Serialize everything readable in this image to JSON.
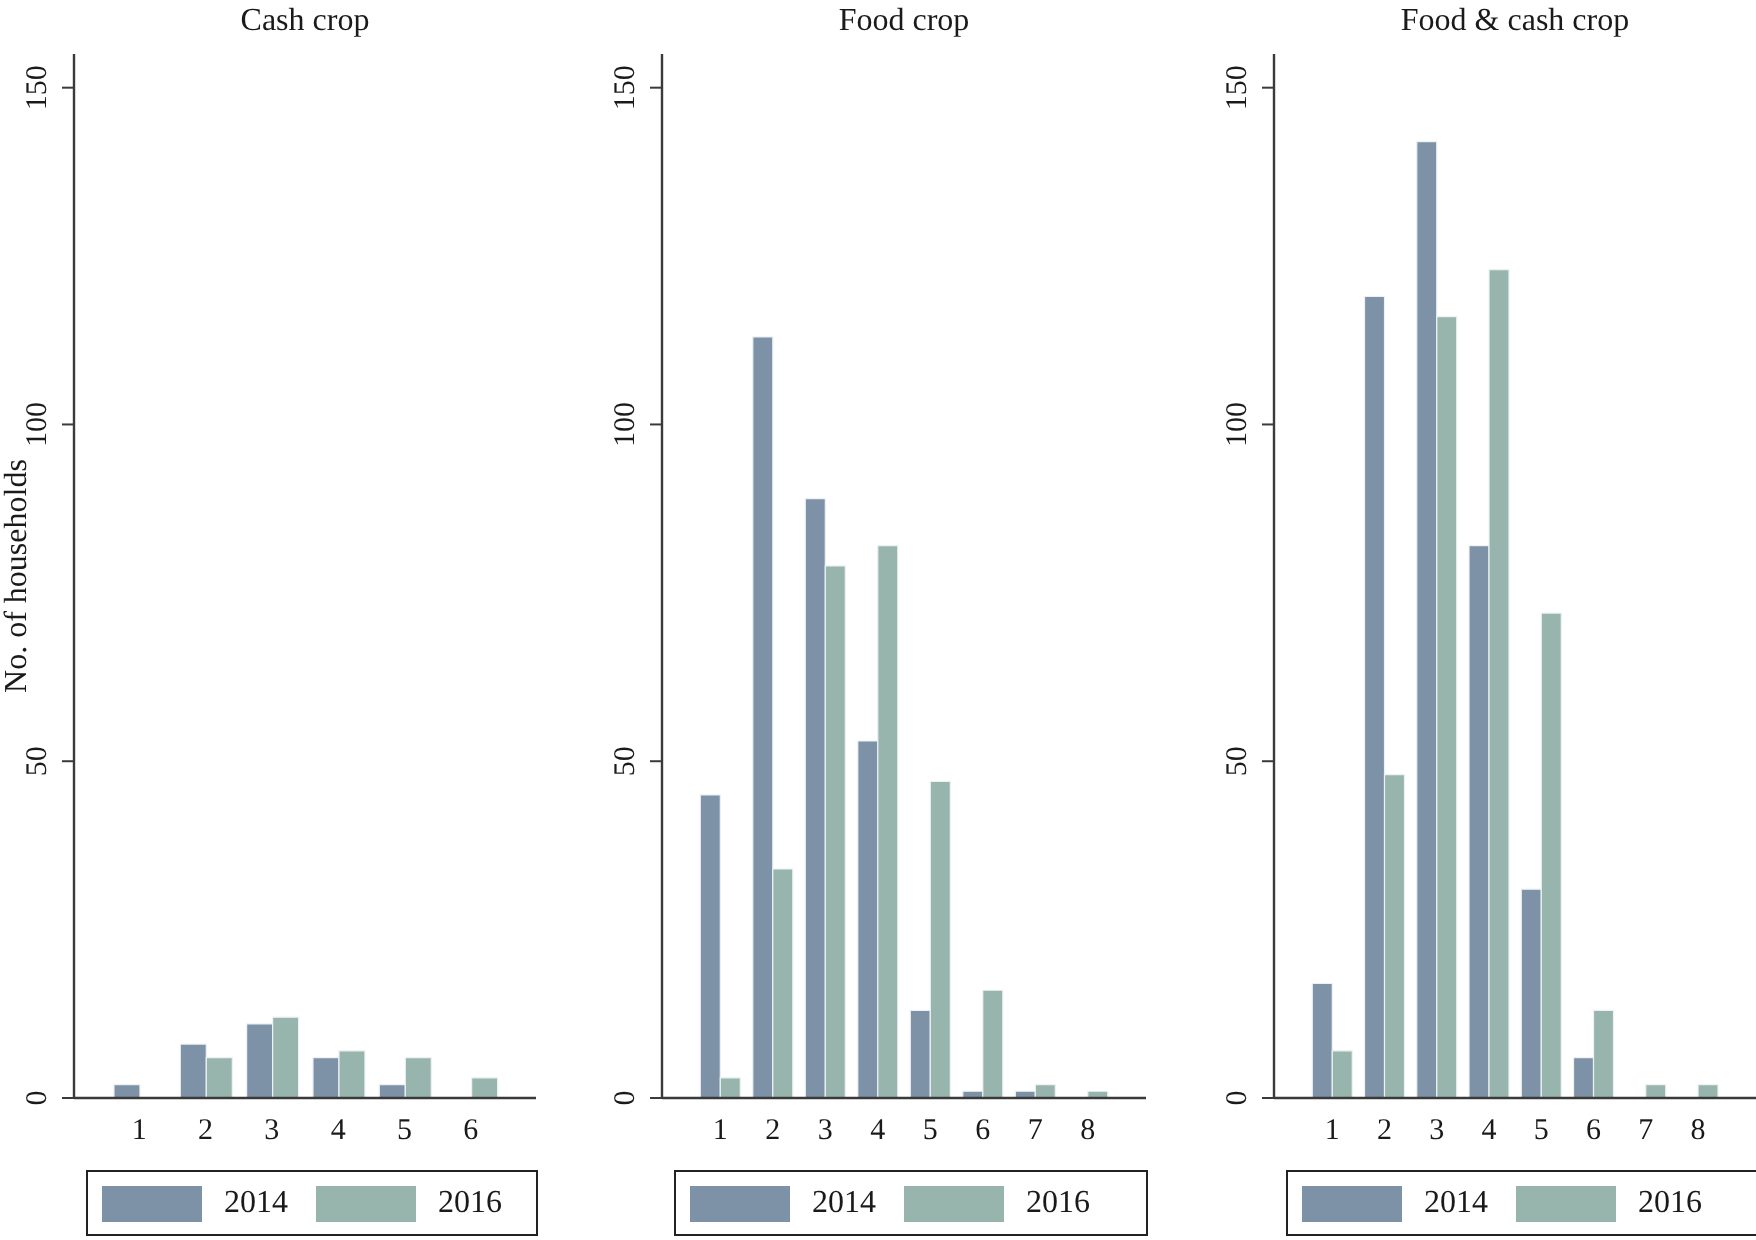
{
  "chart_data": [
    {
      "type": "bar",
      "title": "Cash crop",
      "ylabel": "No. of households",
      "categories": [
        "1",
        "2",
        "3",
        "4",
        "5",
        "6"
      ],
      "series": [
        {
          "name": "2014",
          "color": "#7d91a7",
          "values": [
            2,
            8,
            11,
            6,
            2,
            0
          ]
        },
        {
          "name": "2016",
          "color": "#98b5ad",
          "values": [
            0,
            6,
            12,
            7,
            6,
            3
          ]
        }
      ],
      "ylim": [
        0,
        155
      ],
      "yticks": [
        0,
        50,
        100,
        150
      ],
      "legend": "bottom",
      "grid": false
    },
    {
      "type": "bar",
      "title": "Food crop",
      "categories": [
        "1",
        "2",
        "3",
        "4",
        "5",
        "6",
        "7",
        "8"
      ],
      "series": [
        {
          "name": "2014",
          "color": "#7d91a7",
          "values": [
            45,
            113,
            89,
            53,
            13,
            1,
            1,
            0
          ]
        },
        {
          "name": "2016",
          "color": "#98b5ad",
          "values": [
            3,
            34,
            79,
            82,
            47,
            16,
            2,
            1
          ]
        }
      ],
      "ylim": [
        0,
        155
      ],
      "yticks": [
        0,
        50,
        100,
        150
      ],
      "legend": "bottom",
      "grid": false
    },
    {
      "type": "bar",
      "title": "Food & cash crop",
      "categories": [
        "1",
        "2",
        "3",
        "4",
        "5",
        "6",
        "7",
        "8"
      ],
      "series": [
        {
          "name": "2014",
          "color": "#7d91a7",
          "values": [
            17,
            119,
            142,
            82,
            31,
            6,
            0,
            0
          ]
        },
        {
          "name": "2016",
          "color": "#98b5ad",
          "values": [
            7,
            48,
            116,
            123,
            72,
            13,
            2,
            2
          ]
        }
      ],
      "ylim": [
        0,
        155
      ],
      "yticks": [
        0,
        50,
        100,
        150
      ],
      "legend": "bottom",
      "grid": false
    }
  ]
}
